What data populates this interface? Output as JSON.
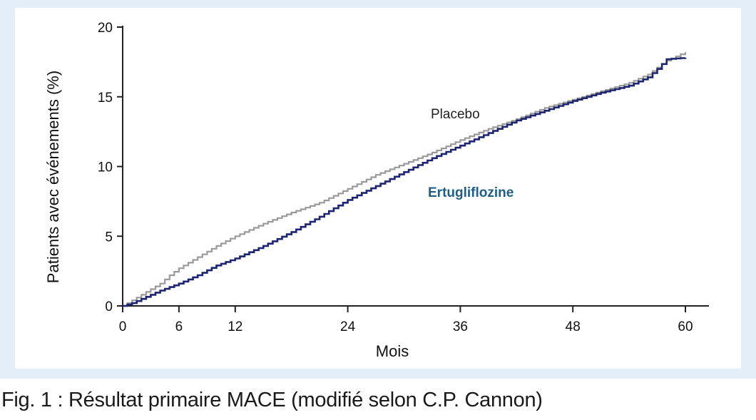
{
  "caption": "Fig. 1 : Résultat primaire MACE (modifié selon C.P. Cannon)",
  "chart_data": {
    "type": "line",
    "title": "",
    "xlabel": "Mois",
    "ylabel": "Patients avec événements (%)",
    "xlim": [
      0,
      60
    ],
    "ylim": [
      0,
      20
    ],
    "xticks": [
      "0",
      "6",
      "12",
      "24",
      "36",
      "48",
      "60"
    ],
    "xtick_values": [
      0,
      6,
      12,
      24,
      36,
      48,
      60
    ],
    "yticks": [
      "0",
      "5",
      "10",
      "15",
      "20"
    ],
    "ytick_values": [
      0,
      5,
      10,
      15,
      20
    ],
    "grid": false,
    "series": [
      {
        "name": "Placebo",
        "color": "#9a9a9a",
        "x": [
          0,
          1,
          2,
          3,
          4,
          5,
          6,
          8,
          10,
          12,
          15,
          18,
          21,
          24,
          27,
          30,
          33,
          36,
          39,
          42,
          45,
          48,
          51,
          54,
          56,
          58,
          60
        ],
        "y": [
          0,
          0.4,
          0.8,
          1.2,
          1.6,
          2.2,
          2.7,
          3.5,
          4.3,
          5.0,
          5.9,
          6.7,
          7.4,
          8.4,
          9.4,
          10.2,
          11.0,
          11.9,
          12.7,
          13.4,
          14.2,
          14.8,
          15.4,
          16.0,
          16.6,
          17.6,
          18.2
        ]
      },
      {
        "name": "Ertugliflozine",
        "color": "#1d2470",
        "x": [
          0,
          1,
          2,
          3,
          4,
          6,
          8,
          10,
          12,
          15,
          18,
          21,
          24,
          27,
          30,
          33,
          36,
          39,
          42,
          45,
          48,
          51,
          54,
          56,
          57,
          58,
          60
        ],
        "y": [
          0,
          0.2,
          0.5,
          0.8,
          1.1,
          1.6,
          2.2,
          2.9,
          3.4,
          4.3,
          5.3,
          6.4,
          7.6,
          8.6,
          9.6,
          10.6,
          11.5,
          12.4,
          13.3,
          14.0,
          14.7,
          15.3,
          15.8,
          16.4,
          17.0,
          17.7,
          17.8
        ]
      }
    ],
    "annotations": [
      {
        "text": "Placebo",
        "color": "#222222"
      },
      {
        "text": "Ertugliflozine",
        "color": "#1f5f86"
      }
    ]
  }
}
